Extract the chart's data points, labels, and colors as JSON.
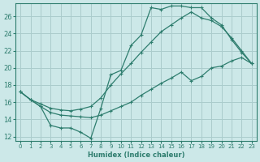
{
  "xlabel": "Humidex (Indice chaleur)",
  "bg_color": "#cce8e8",
  "grid_color": "#aacccc",
  "line_color": "#2e7d6e",
  "xlim": [
    -0.5,
    23.5
  ],
  "ylim": [
    11.5,
    27.5
  ],
  "xticks": [
    0,
    1,
    2,
    3,
    4,
    5,
    6,
    7,
    8,
    9,
    10,
    11,
    12,
    13,
    14,
    15,
    16,
    17,
    18,
    19,
    20,
    21,
    22,
    23
  ],
  "yticks": [
    12,
    14,
    16,
    18,
    20,
    22,
    24,
    26
  ],
  "line1_x": [
    0,
    1,
    2,
    3,
    4,
    5,
    6,
    7,
    8,
    9,
    10,
    11,
    12,
    13,
    14,
    15,
    16,
    17,
    18,
    19,
    20,
    21,
    22,
    23
  ],
  "line1_y": [
    17.2,
    16.3,
    15.5,
    13.3,
    13.0,
    13.0,
    12.5,
    11.8,
    15.3,
    19.2,
    19.7,
    22.6,
    23.8,
    27.0,
    26.8,
    27.2,
    27.2,
    27.0,
    27.0,
    25.8,
    25.0,
    23.3,
    21.8,
    20.5
  ],
  "line2_x": [
    0,
    1,
    2,
    3,
    4,
    5,
    6,
    7,
    8,
    9,
    10,
    11,
    12,
    13,
    14,
    15,
    16,
    17,
    18,
    19,
    20,
    21,
    22,
    23
  ],
  "line2_y": [
    17.2,
    16.3,
    15.8,
    15.3,
    15.1,
    15.0,
    15.2,
    15.5,
    16.5,
    18.0,
    19.3,
    20.5,
    21.8,
    23.0,
    24.2,
    25.0,
    25.8,
    26.5,
    25.8,
    25.5,
    24.8,
    23.5,
    22.0,
    20.5
  ],
  "line3_x": [
    0,
    1,
    2,
    3,
    4,
    5,
    6,
    7,
    8,
    9,
    10,
    11,
    12,
    13,
    14,
    15,
    16,
    17,
    18,
    19,
    20,
    21,
    22,
    23
  ],
  "line3_y": [
    17.2,
    16.3,
    15.5,
    14.8,
    14.5,
    14.4,
    14.3,
    14.2,
    14.5,
    15.0,
    15.5,
    16.0,
    16.8,
    17.5,
    18.2,
    18.8,
    19.5,
    18.5,
    19.0,
    20.0,
    20.2,
    20.8,
    21.2,
    20.5
  ]
}
